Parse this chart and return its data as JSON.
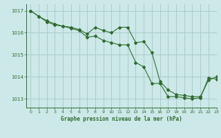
{
  "title": "Graphe pression niveau de la mer (hPa)",
  "background_color": "#cce8e8",
  "grid_color": "#aacccc",
  "line_color": "#2d6b2d",
  "xlim": [
    -0.5,
    23
  ],
  "ylim": [
    1012.6,
    1017.3
  ],
  "yticks": [
    1013,
    1014,
    1015,
    1016,
    1017
  ],
  "xticks": [
    0,
    1,
    2,
    3,
    4,
    5,
    6,
    7,
    8,
    9,
    10,
    11,
    12,
    13,
    14,
    15,
    16,
    17,
    18,
    19,
    20,
    21,
    22,
    23
  ],
  "series1_x": [
    0,
    1,
    2,
    3,
    4,
    5,
    6,
    7,
    8,
    9,
    10,
    11,
    12,
    13,
    14,
    15,
    16,
    17,
    18,
    19,
    20,
    21,
    22,
    23
  ],
  "series1_y": [
    1017.0,
    1016.75,
    1016.55,
    1016.4,
    1016.3,
    1016.25,
    1016.15,
    1015.95,
    1016.25,
    1016.1,
    1016.0,
    1016.25,
    1016.25,
    1015.55,
    1015.6,
    1015.1,
    1013.8,
    1013.4,
    1013.2,
    1013.15,
    1013.1,
    1013.1,
    1013.85,
    1014.0
  ],
  "series2_x": [
    0,
    1,
    2,
    3,
    4,
    5,
    6,
    7,
    8,
    9,
    10,
    11,
    12,
    13,
    14,
    15,
    16,
    17,
    18,
    19,
    20,
    21,
    22,
    23
  ],
  "series2_y": [
    1017.0,
    1016.75,
    1016.5,
    1016.35,
    1016.3,
    1016.2,
    1016.1,
    1015.8,
    1015.85,
    1015.65,
    1015.55,
    1015.45,
    1015.45,
    1014.65,
    1014.45,
    1013.7,
    1013.7,
    1013.1,
    1013.1,
    1013.05,
    1013.0,
    1013.05,
    1013.95,
    1013.9
  ],
  "figwidth": 3.2,
  "figheight": 2.0,
  "dpi": 100
}
